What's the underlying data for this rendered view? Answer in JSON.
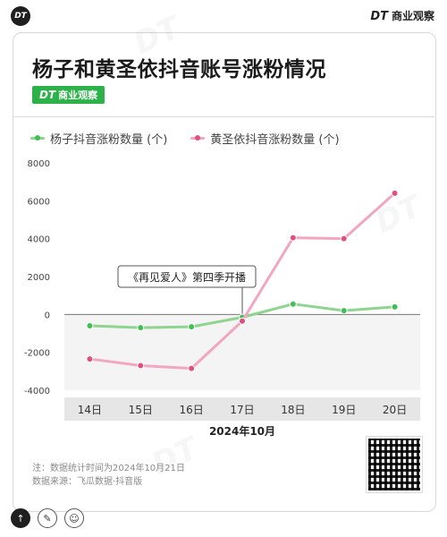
{
  "header": {
    "logo": "DT",
    "brand_dt": "DT",
    "brand_name": "商业观察"
  },
  "title": "杨子和黄圣依抖音账号涨粉情况",
  "badge": {
    "dt": "DT",
    "name": "商业观察"
  },
  "legend": [
    {
      "label": "杨子抖音涨粉数量 (个)",
      "color": "#8fd48f"
    },
    {
      "label": "黄圣依抖音涨粉数量 (个)",
      "color": "#f2a6c2"
    }
  ],
  "annotation": "《再见爱人》第四季开播",
  "note": {
    "line1": "注：数据统计时间为2024年10月21日",
    "line2": "数据来源：飞瓜数据·抖音版"
  },
  "icons": [
    "up-arrow-icon",
    "pencil-icon",
    "person-icon"
  ],
  "chart_data": {
    "type": "line",
    "categories": [
      "14日",
      "15日",
      "16日",
      "17日",
      "18日",
      "19日",
      "20日"
    ],
    "xlabel": "2024年10月",
    "ylabel": "",
    "ylim": [
      -4000,
      8000
    ],
    "yticks": [
      "8000",
      "6000",
      "4000",
      "2000",
      "0",
      "-2000",
      "-4000"
    ],
    "grid": false,
    "legend_position": "top-left",
    "series": [
      {
        "name": "杨子抖音涨粉数量 (个)",
        "color": "#8fd48f",
        "dot": "#3fbf55",
        "values": [
          -600,
          -700,
          -650,
          -150,
          550,
          200,
          400
        ]
      },
      {
        "name": "黄圣依抖音涨粉数量 (个)",
        "color": "#f2a6c2",
        "dot": "#e0507f",
        "values": [
          -2350,
          -2700,
          -2850,
          -350,
          4050,
          4000,
          6400
        ]
      }
    ]
  }
}
